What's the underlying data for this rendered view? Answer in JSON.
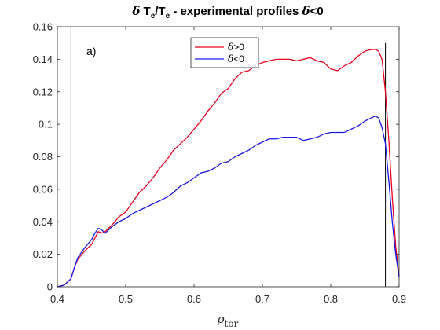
{
  "chart_data": {
    "type": "line",
    "title": "δ T_e/T_e - experimental profiles δ<0",
    "xlabel": "ρ_tor",
    "ylabel": "",
    "xlim": [
      0.4,
      0.9
    ],
    "ylim": [
      0,
      0.16
    ],
    "x_ticks": [
      "0.4",
      "0.5",
      "0.6",
      "0.7",
      "0.8",
      "0.9"
    ],
    "y_ticks": [
      "0",
      "0.02",
      "0.04",
      "0.06",
      "0.08",
      "0.1",
      "0.12",
      "0.14",
      "0.16"
    ],
    "annotation": "a)",
    "legend_position": "top-center",
    "grid": false,
    "vertical_lines_x": [
      0.42,
      0.88
    ],
    "series": [
      {
        "name": "δ>0",
        "color": "#e8001c",
        "x": [
          0.4,
          0.41,
          0.42,
          0.425,
          0.43,
          0.44,
          0.45,
          0.455,
          0.46,
          0.465,
          0.47,
          0.48,
          0.49,
          0.5,
          0.51,
          0.52,
          0.53,
          0.54,
          0.55,
          0.56,
          0.57,
          0.58,
          0.59,
          0.6,
          0.61,
          0.62,
          0.63,
          0.64,
          0.65,
          0.66,
          0.67,
          0.68,
          0.69,
          0.7,
          0.71,
          0.72,
          0.73,
          0.74,
          0.75,
          0.76,
          0.77,
          0.78,
          0.79,
          0.8,
          0.81,
          0.82,
          0.83,
          0.84,
          0.85,
          0.86,
          0.865,
          0.87,
          0.875,
          0.88,
          0.885,
          0.89,
          0.895,
          0.9
        ],
        "y": [
          0.0,
          0.001,
          0.005,
          0.012,
          0.017,
          0.022,
          0.026,
          0.03,
          0.034,
          0.033,
          0.034,
          0.038,
          0.043,
          0.046,
          0.052,
          0.058,
          0.062,
          0.067,
          0.073,
          0.078,
          0.084,
          0.088,
          0.092,
          0.097,
          0.102,
          0.108,
          0.113,
          0.119,
          0.122,
          0.128,
          0.132,
          0.133,
          0.136,
          0.138,
          0.139,
          0.14,
          0.14,
          0.14,
          0.139,
          0.14,
          0.141,
          0.139,
          0.138,
          0.134,
          0.133,
          0.136,
          0.138,
          0.142,
          0.145,
          0.146,
          0.146,
          0.145,
          0.14,
          0.12,
          0.09,
          0.055,
          0.025,
          0.006
        ]
      },
      {
        "name": "δ<0",
        "color": "#1a1ae6",
        "x": [
          0.4,
          0.41,
          0.42,
          0.425,
          0.43,
          0.44,
          0.45,
          0.455,
          0.46,
          0.465,
          0.47,
          0.48,
          0.49,
          0.5,
          0.51,
          0.52,
          0.53,
          0.54,
          0.55,
          0.56,
          0.57,
          0.58,
          0.59,
          0.6,
          0.61,
          0.62,
          0.63,
          0.64,
          0.65,
          0.66,
          0.67,
          0.68,
          0.69,
          0.7,
          0.71,
          0.72,
          0.73,
          0.74,
          0.75,
          0.76,
          0.77,
          0.78,
          0.79,
          0.8,
          0.81,
          0.82,
          0.83,
          0.84,
          0.85,
          0.86,
          0.865,
          0.87,
          0.875,
          0.88,
          0.885,
          0.89,
          0.895,
          0.9
        ],
        "y": [
          0.0,
          0.001,
          0.005,
          0.012,
          0.018,
          0.024,
          0.029,
          0.033,
          0.036,
          0.035,
          0.033,
          0.037,
          0.04,
          0.042,
          0.045,
          0.047,
          0.049,
          0.051,
          0.053,
          0.055,
          0.058,
          0.062,
          0.064,
          0.067,
          0.07,
          0.071,
          0.073,
          0.076,
          0.077,
          0.08,
          0.082,
          0.084,
          0.087,
          0.089,
          0.091,
          0.091,
          0.092,
          0.092,
          0.092,
          0.09,
          0.091,
          0.092,
          0.094,
          0.095,
          0.095,
          0.095,
          0.097,
          0.099,
          0.102,
          0.104,
          0.105,
          0.104,
          0.098,
          0.088,
          0.065,
          0.04,
          0.02,
          0.006
        ]
      }
    ]
  }
}
